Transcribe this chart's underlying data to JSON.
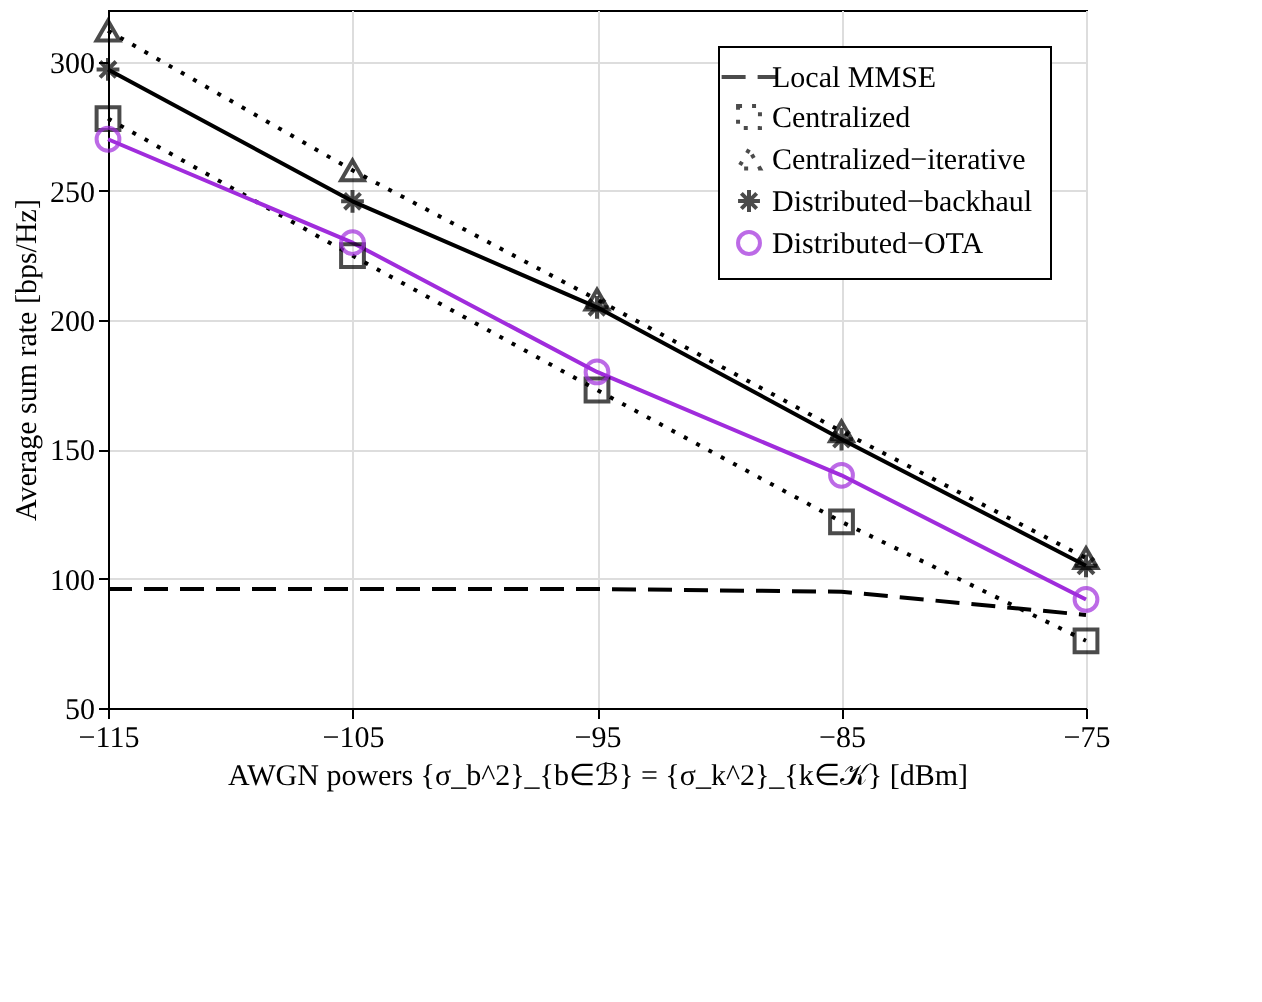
{
  "chart_data": {
    "type": "line",
    "xlabel": "AWGN powers {σ_b^2}_{b∈ℬ} = {σ_k^2}_{k∈𝒦} [dBm]",
    "ylabel": "Average sum rate [bps/Hz]",
    "x": [
      -115,
      -105,
      -95,
      -85,
      -75
    ],
    "xlim": [
      -115,
      -75
    ],
    "xticks": [
      -115,
      -105,
      -95,
      -85,
      -75
    ],
    "ylim": [
      50,
      320
    ],
    "yticks": [
      50,
      100,
      150,
      200,
      250,
      300
    ],
    "grid": true,
    "legend": "top right",
    "series": [
      {
        "name": "Local MMSE",
        "color": "#000000",
        "marker": "none",
        "line_style": "dashed",
        "values": [
          96,
          96,
          96,
          95,
          86
        ]
      },
      {
        "name": "Centralized",
        "color": "#000000",
        "marker": "square",
        "line_style": "dotted",
        "values": [
          278,
          225,
          173,
          122,
          76
        ]
      },
      {
        "name": "Centralized−iterative",
        "color": "#000000",
        "marker": "triangle",
        "line_style": "dotted",
        "values": [
          312,
          258,
          208,
          157,
          108
        ]
      },
      {
        "name": "Distributed−backhaul",
        "color": "#000000",
        "marker": "cross",
        "line_style": "solid",
        "values": [
          297,
          246,
          205,
          154,
          105
        ]
      },
      {
        "name": "Distributed−OTA",
        "color": "#a02cdc",
        "marker": "circle",
        "line_style": "solid",
        "values": [
          270,
          230,
          180,
          140,
          92
        ]
      }
    ]
  }
}
